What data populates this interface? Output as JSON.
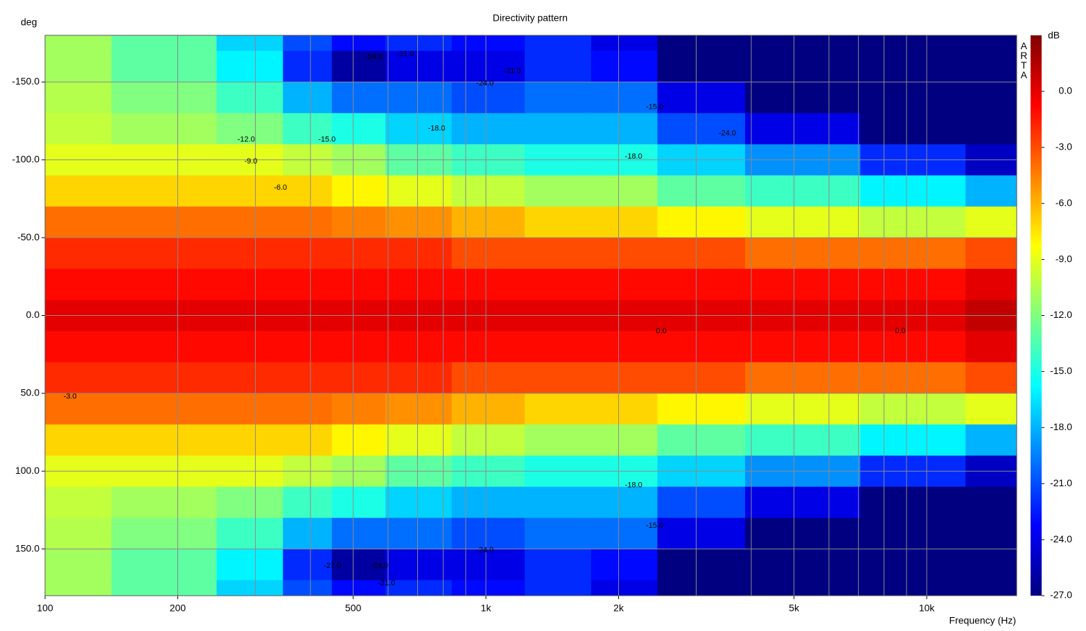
{
  "chart_data": {
    "type": "heatmap",
    "title": "Directivity pattern",
    "y_label": "deg",
    "x_label": "Frequency (Hz)",
    "z_label": "dB",
    "watermark": "ARTA",
    "colormap": "jet",
    "x_scale": "log",
    "xlim": [
      100,
      16000
    ],
    "ylim": [
      -180,
      180
    ],
    "zlim": [
      -27,
      3
    ],
    "xticks": [
      100,
      200,
      500,
      {
        "value": 1000,
        "label": "1k"
      },
      {
        "value": 2000,
        "label": "2k"
      },
      {
        "value": 5000,
        "label": "5k"
      },
      {
        "value": 10000,
        "label": "10k"
      }
    ],
    "xminor": [
      300,
      400,
      600,
      700,
      800,
      900,
      3000,
      4000,
      6000,
      7000,
      8000,
      9000
    ],
    "yticks": [
      {
        "value": -150,
        "label": "-150.0"
      },
      {
        "value": -100,
        "label": "-100.0"
      },
      {
        "value": -50,
        "label": "-50.0"
      },
      {
        "value": 0,
        "label": "0.0"
      },
      {
        "value": 50,
        "label": "50.0"
      },
      {
        "value": 100,
        "label": "100.0"
      },
      {
        "value": 150,
        "label": "150.0"
      }
    ],
    "zticks": [
      {
        "value": 0,
        "label": "0.0"
      },
      {
        "value": -3,
        "label": "-3.0"
      },
      {
        "value": -6,
        "label": "-6.0"
      },
      {
        "value": -9,
        "label": "-9.0"
      },
      {
        "value": -12,
        "label": "-12.0"
      },
      {
        "value": -15,
        "label": "-15.0"
      },
      {
        "value": -18,
        "label": "-18.0"
      },
      {
        "value": -21,
        "label": "-21.0"
      },
      {
        "value": -24,
        "label": "-24.0"
      },
      {
        "value": -27,
        "label": "-27.0"
      }
    ],
    "grid": true,
    "x": [
      100,
      200,
      300,
      400,
      500,
      700,
      1000,
      1500,
      2000,
      3000,
      5000,
      10000,
      15000
    ],
    "y": [
      -180,
      -160,
      -140,
      -120,
      -100,
      -80,
      -60,
      -40,
      -20,
      0,
      20,
      40,
      60,
      80,
      100,
      120,
      140,
      160,
      180
    ],
    "z": [
      [
        -11,
        -11,
        -10.5,
        -10,
        -9,
        -7,
        -4,
        -2,
        -1,
        0,
        -1,
        -2,
        -4,
        -7,
        -9,
        -10,
        -10.5,
        -11,
        -11
      ],
      [
        -13,
        -13,
        -12,
        -11,
        -9,
        -7,
        -4,
        -2,
        -1,
        0,
        -1,
        -2,
        -4,
        -7,
        -9,
        -11,
        -12,
        -13,
        -13
      ],
      [
        -17,
        -16,
        -14,
        -12,
        -9,
        -7,
        -4,
        -2,
        -1,
        0,
        -1,
        -2,
        -4,
        -7,
        -9,
        -12,
        -14,
        -16,
        -17
      ],
      [
        -21,
        -22,
        -18,
        -14,
        -10,
        -7,
        -4,
        -2,
        -1,
        0,
        -1,
        -2,
        -4,
        -7,
        -10,
        -14,
        -18,
        -22,
        -21
      ],
      [
        -23,
        -26,
        -20,
        -15,
        -11,
        -8,
        -4.5,
        -2,
        -1,
        0,
        -1,
        -2,
        -4.5,
        -8,
        -11,
        -15,
        -20,
        -26,
        -23
      ],
      [
        -22,
        -24,
        -20,
        -17,
        -13,
        -9,
        -5,
        -2,
        -1,
        0,
        -1,
        -2,
        -5,
        -9,
        -13,
        -17,
        -20,
        -24,
        -22
      ],
      [
        -23,
        -24,
        -21,
        -18,
        -14,
        -10,
        -6,
        -3,
        -1,
        0,
        -1,
        -3,
        -6,
        -10,
        -14,
        -18,
        -21,
        -24,
        -23
      ],
      [
        -22,
        -22,
        -20,
        -18,
        -15,
        -11,
        -7,
        -3,
        -1,
        0,
        -1,
        -3,
        -7,
        -11,
        -15,
        -18,
        -20,
        -22,
        -22
      ],
      [
        -24,
        -23,
        -20,
        -18,
        -15,
        -11,
        -7,
        -3,
        -1,
        0,
        -1,
        -3,
        -7,
        -11,
        -15,
        -18,
        -20,
        -23,
        -24
      ],
      [
        -27,
        -27,
        -24,
        -21,
        -17,
        -13,
        -8,
        -3,
        -1,
        0,
        -1,
        -3,
        -8,
        -13,
        -17,
        -21,
        -24,
        -27,
        -27
      ],
      [
        -27,
        -27,
        -27,
        -24,
        -19,
        -14,
        -9,
        -4,
        -1,
        0,
        -1,
        -4,
        -9,
        -14,
        -19,
        -24,
        -27,
        -27,
        -27
      ],
      [
        -27,
        -27,
        -27,
        -27,
        -22,
        -16,
        -10,
        -4,
        -1,
        0,
        -1,
        -4,
        -10,
        -16,
        -22,
        -27,
        -27,
        -27,
        -27
      ],
      [
        -27,
        -27,
        -27,
        -27,
        -25,
        -18,
        -9,
        -3,
        0,
        1,
        0,
        -3,
        -9,
        -18,
        -25,
        -27,
        -27,
        -27,
        -27
      ]
    ],
    "annotations": [
      {
        "label": "-24.0",
        "x": 557,
        "y": -166
      },
      {
        "label": "-21.0",
        "x": 656,
        "y": -168
      },
      {
        "label": "-21.0",
        "x": 1148,
        "y": -157
      },
      {
        "label": "-24.0",
        "x": 995,
        "y": -149
      },
      {
        "label": "-18.0",
        "x": 773,
        "y": -120
      },
      {
        "label": "-15.0",
        "x": 436,
        "y": -113
      },
      {
        "label": "-12.0",
        "x": 286,
        "y": -113
      },
      {
        "label": "-9.0",
        "x": 293,
        "y": -99
      },
      {
        "label": "-6.0",
        "x": 342,
        "y": -82
      },
      {
        "label": "-15.0",
        "x": 2415,
        "y": -134
      },
      {
        "label": "-18.0",
        "x": 2163,
        "y": -102
      },
      {
        "label": "-24.0",
        "x": 3530,
        "y": -117
      },
      {
        "label": "0.0",
        "x": 2500,
        "y": 10
      },
      {
        "label": "0.0",
        "x": 8710,
        "y": 10
      },
      {
        "label": "-3.0",
        "x": 114,
        "y": 52
      },
      {
        "label": "-18.0",
        "x": 2163,
        "y": 109
      },
      {
        "label": "-15.0",
        "x": 2415,
        "y": 135
      },
      {
        "label": "-24.0",
        "x": 995,
        "y": 151
      },
      {
        "label": "-27.0",
        "x": 449,
        "y": 161
      },
      {
        "label": "-24.0",
        "x": 574,
        "y": 161
      },
      {
        "label": "-21.0",
        "x": 595,
        "y": 172
      }
    ]
  }
}
